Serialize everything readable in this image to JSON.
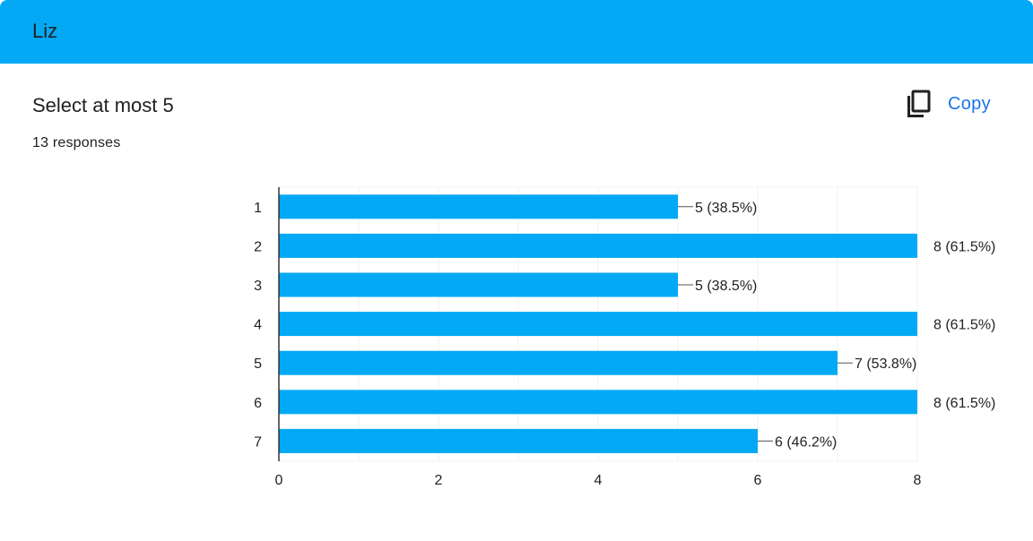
{
  "header": {
    "title": "Liz"
  },
  "question": {
    "title": "Select at most 5",
    "responses": "13 responses"
  },
  "actions": {
    "copy_label": "Copy",
    "copy_icon": "copy-icon"
  },
  "colors": {
    "header": "#03a9f4",
    "bar": "#03a9f4",
    "link": "#1a73e8"
  },
  "chart_data": {
    "type": "bar",
    "orientation": "horizontal",
    "categories": [
      "1",
      "2",
      "3",
      "4",
      "5",
      "6",
      "7"
    ],
    "values": [
      5,
      8,
      5,
      8,
      7,
      8,
      6
    ],
    "data_labels": [
      "5 (38.5%)",
      "8 (61.5%)",
      "5 (38.5%)",
      "8 (61.5%)",
      "7 (53.8%)",
      "8 (61.5%)",
      "6 (46.2%)"
    ],
    "xlim": [
      0,
      8
    ],
    "xticks": [
      "0",
      "2",
      "4",
      "6",
      "8"
    ],
    "grid": true,
    "legend": "none"
  }
}
